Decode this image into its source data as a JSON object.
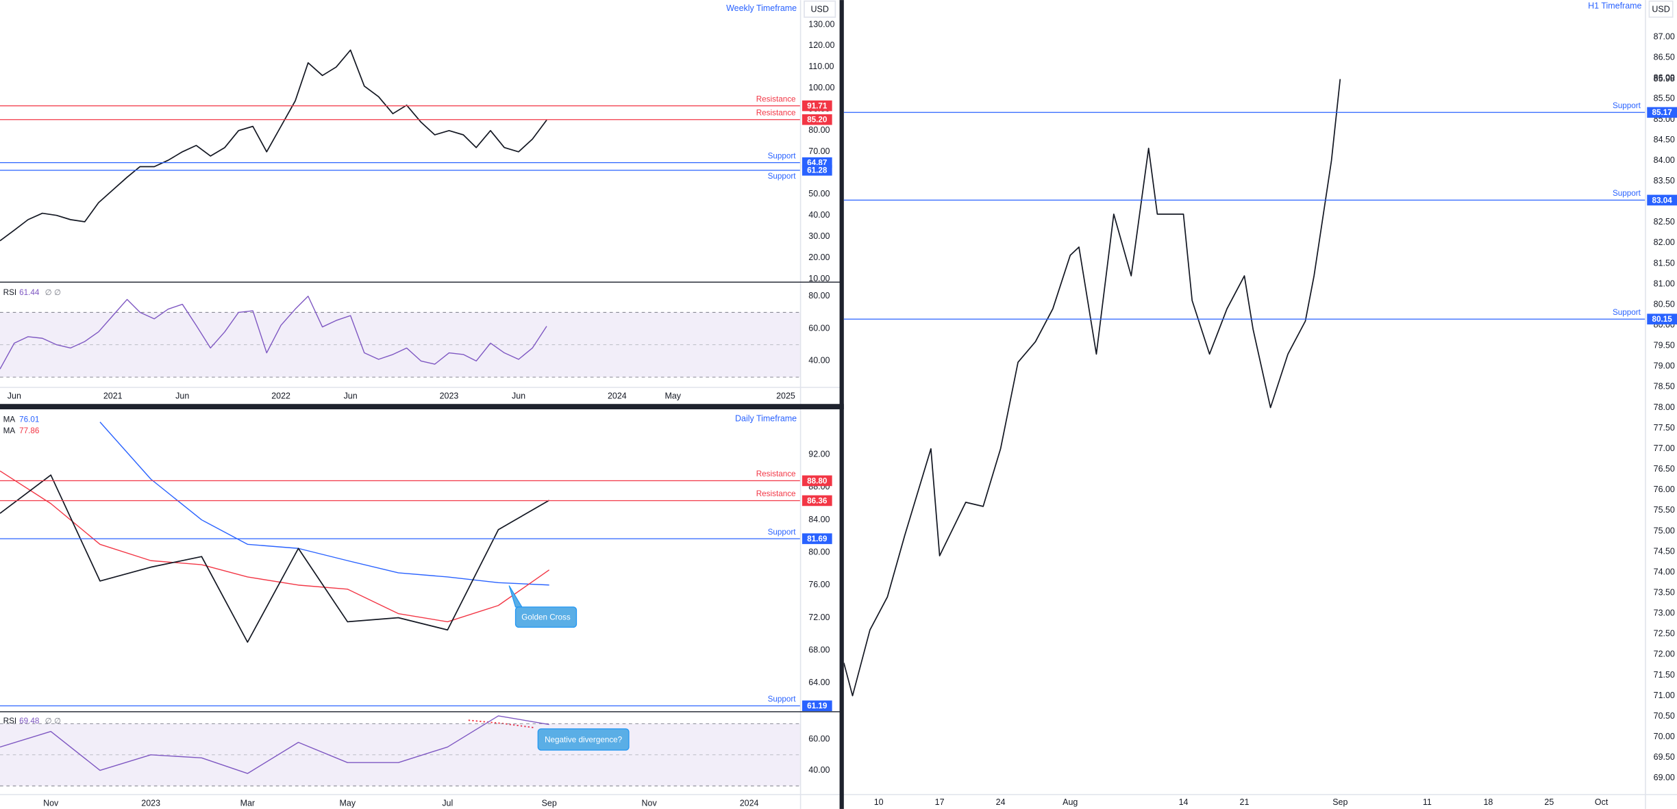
{
  "chart_data": [
    {
      "type": "line",
      "title": "Weekly Timeframe",
      "currency": "USD",
      "color": "#131722",
      "x": [
        "2020-05",
        "2020-06",
        "2020-07",
        "2020-08",
        "2020-09",
        "2020-10",
        "2020-11",
        "2020-12",
        "2021-01",
        "2021-02",
        "2021-03",
        "2021-04",
        "2021-05",
        "2021-06",
        "2021-07",
        "2021-08",
        "2021-09",
        "2021-10",
        "2021-11",
        "2021-12",
        "2022-01",
        "2022-02",
        "2022-03",
        "2022-04",
        "2022-05",
        "2022-06",
        "2022-07",
        "2022-08",
        "2022-09",
        "2022-10",
        "2022-11",
        "2022-12",
        "2023-01",
        "2023-02",
        "2023-03",
        "2023-04",
        "2023-05",
        "2023-06",
        "2023-07",
        "2023-08"
      ],
      "values": [
        28,
        33,
        38,
        41,
        40,
        38,
        37,
        46,
        52,
        58,
        63,
        63,
        66,
        70,
        73,
        68,
        72,
        80,
        82,
        70,
        82,
        94,
        112,
        106,
        110,
        118,
        101,
        96,
        88,
        92,
        84,
        78,
        80,
        78,
        72,
        80,
        72,
        70,
        76,
        85
      ],
      "xlim": [
        "2020-05",
        "2025-02"
      ],
      "xticks": [
        {
          "value": "2020-06",
          "label": "Jun"
        },
        {
          "value": "2021-01",
          "label": "2021"
        },
        {
          "value": "2021-06",
          "label": "Jun"
        },
        {
          "value": "2022-01",
          "label": "2022"
        },
        {
          "value": "2022-06",
          "label": "Jun"
        },
        {
          "value": "2023-01",
          "label": "2023"
        },
        {
          "value": "2023-06",
          "label": "Jun"
        },
        {
          "value": "2024-01",
          "label": "2024"
        },
        {
          "value": "2024-05",
          "label": "May"
        },
        {
          "value": "2025-01",
          "label": "2025"
        }
      ],
      "ylim": [
        9,
        141.6
      ],
      "yticks": [
        {
          "value": 10,
          "label": "10.00"
        },
        {
          "value": 20,
          "label": "20.00"
        },
        {
          "value": 30,
          "label": "30.00"
        },
        {
          "value": 40,
          "label": "40.00"
        },
        {
          "value": 50,
          "label": "50.00"
        },
        {
          "value": 60,
          "label": "60.00"
        },
        {
          "value": 70,
          "label": "70.00"
        },
        {
          "value": 80,
          "label": "80.00"
        },
        {
          "value": 90,
          "label": "90.00"
        },
        {
          "value": 100,
          "label": "100.00"
        },
        {
          "value": 110,
          "label": "110.00"
        },
        {
          "value": 120,
          "label": "120.00"
        },
        {
          "value": 130,
          "label": "130.00"
        }
      ],
      "levels": [
        {
          "name": "Resistance",
          "value": 91.71,
          "color": "#f23645"
        },
        {
          "name": "Resistance",
          "value": 85.2,
          "value_label": "85.20",
          "color": "#f23645"
        },
        {
          "name": "Support",
          "value": 64.87,
          "color": "#2962ff"
        },
        {
          "name": "Support",
          "value": 61.28,
          "color": "#2962ff"
        }
      ],
      "rsi": {
        "name": "RSI",
        "flags": "∅ ∅",
        "color": "#7e57c2",
        "values": [
          35,
          51,
          55,
          54,
          50,
          48,
          52,
          58,
          68,
          78,
          70,
          66,
          72,
          75,
          62,
          48,
          58,
          70,
          71,
          45,
          62,
          72,
          80,
          61,
          65,
          68,
          45,
          41,
          44,
          48,
          40,
          38,
          45,
          44,
          40,
          51,
          45,
          41,
          48,
          61.44
        ],
        "ylim": [
          24,
          88
        ],
        "yticks": [
          {
            "value": 40,
            "label": "40.00"
          },
          {
            "value": 60,
            "label": "60.00"
          },
          {
            "value": 80,
            "label": "80.00"
          }
        ],
        "bands": [
          70,
          50,
          30
        ]
      }
    },
    {
      "type": "line",
      "title": "Daily Timeframe",
      "currency": "USD",
      "color": "#131722",
      "x": [
        "2022-10",
        "2022-11",
        "2022-12",
        "2023-01",
        "2023-02",
        "2023-03",
        "2023-04",
        "2023-05",
        "2023-06",
        "2023-07",
        "2023-08",
        "2023-09"
      ],
      "values": [
        84.8,
        89.5,
        76.5,
        78.2,
        79.5,
        69,
        80.5,
        71.5,
        72,
        70.5,
        82.8,
        86.4
      ],
      "series": [
        {
          "name": "MA",
          "color": "#2962ff",
          "values": [
            null,
            null,
            96,
            89,
            84,
            81,
            80.5,
            79,
            77.5,
            77,
            76.3,
            76.01
          ]
        },
        {
          "name": "MA",
          "color": "#f23645",
          "values": [
            90,
            86,
            81,
            79,
            78.5,
            77,
            76,
            75.5,
            72.5,
            71.5,
            73.5,
            77.86
          ]
        }
      ],
      "xlim": [
        "2022-10",
        "2024-02"
      ],
      "xticks": [
        {
          "value": "2022-11",
          "label": "Nov"
        },
        {
          "value": "2023-01",
          "label": "2023"
        },
        {
          "value": "2023-03",
          "label": "Mar"
        },
        {
          "value": "2023-05",
          "label": "May"
        },
        {
          "value": "2023-07",
          "label": "Jul"
        },
        {
          "value": "2023-09",
          "label": "Sep"
        },
        {
          "value": "2023-11",
          "label": "Nov"
        },
        {
          "value": "2024-01",
          "label": "2024"
        }
      ],
      "ylim": [
        60.6,
        97.3
      ],
      "yticks": [
        {
          "value": 64,
          "label": "64.00"
        },
        {
          "value": 68,
          "label": "68.00"
        },
        {
          "value": 72,
          "label": "72.00"
        },
        {
          "value": 76,
          "label": "76.00"
        },
        {
          "value": 80,
          "label": "80.00"
        },
        {
          "value": 84,
          "label": "84.00"
        },
        {
          "value": 88,
          "label": "88.00"
        },
        {
          "value": 92,
          "label": "92.00"
        }
      ],
      "levels": [
        {
          "name": "Resistance",
          "value": 88.8,
          "value_label": "88.80",
          "color": "#f23645"
        },
        {
          "name": "Resistance",
          "value": 86.36,
          "color": "#f23645"
        },
        {
          "name": "Support",
          "value": 81.69,
          "color": "#2962ff"
        },
        {
          "name": "Support",
          "value": 61.19,
          "color": "#2962ff"
        }
      ],
      "annotations": [
        "Golden Cross",
        "Negative divergence?"
      ],
      "rsi": {
        "name": "RSI",
        "flags": "∅ ∅",
        "color": "#7e57c2",
        "values": [
          55,
          65,
          40,
          50,
          48,
          38,
          58,
          45,
          45,
          55,
          75,
          69.48
        ],
        "ylim": [
          25.5,
          77
        ],
        "yticks": [
          {
            "value": 40,
            "label": "40.00"
          },
          {
            "value": 60,
            "label": "60.00"
          }
        ],
        "bands": [
          70,
          50,
          30
        ]
      }
    },
    {
      "type": "line",
      "title": "H1 Timeframe",
      "currency": "USD",
      "color": "#131722",
      "x": [
        "Jul 6",
        "Jul 7",
        "Jul 9",
        "Jul 11",
        "Jul 13",
        "Jul 16",
        "Jul 17",
        "Jul 20",
        "Jul 22",
        "Jul 24",
        "Jul 26",
        "Jul 28",
        "Jul 30",
        "Aug 1",
        "Aug 2",
        "Aug 4",
        "Aug 6",
        "Aug 8",
        "Aug 10",
        "Aug 11",
        "Aug 14",
        "Aug 15",
        "Aug 17",
        "Aug 19",
        "Aug 21",
        "Aug 22",
        "Aug 24",
        "Aug 26",
        "Aug 28",
        "Aug 29",
        "Aug 31",
        "Sep 1"
      ],
      "values": [
        71.8,
        71.0,
        72.6,
        73.4,
        74.9,
        77.0,
        74.4,
        75.7,
        75.6,
        77.0,
        79.1,
        79.6,
        80.4,
        81.7,
        81.9,
        79.3,
        82.7,
        81.2,
        84.3,
        82.7,
        82.7,
        80.6,
        79.3,
        80.4,
        81.2,
        79.9,
        78.0,
        79.3,
        80.1,
        81.2,
        84.0,
        85.98
      ],
      "xlim": [
        "Jul 6",
        "Oct 6"
      ],
      "xticks": [
        {
          "value": "Jul 10",
          "label": "10"
        },
        {
          "value": "Jul 17",
          "label": "17"
        },
        {
          "value": "Jul 24",
          "label": "24"
        },
        {
          "value": "Aug 1",
          "label": "Aug"
        },
        {
          "value": "Aug 14",
          "label": "14"
        },
        {
          "value": "Aug 21",
          "label": "21"
        },
        {
          "value": "Sep 1",
          "label": "Sep"
        },
        {
          "value": "Sep 11",
          "label": "11"
        },
        {
          "value": "Sep 18",
          "label": "18"
        },
        {
          "value": "Sep 25",
          "label": "25"
        },
        {
          "value": "Oct 1",
          "label": "Oct"
        }
      ],
      "ylim": [
        68.64,
        87.9
      ],
      "yticks": [
        {
          "value": 69,
          "label": "69.00"
        },
        {
          "value": 69.5,
          "label": "69.50"
        },
        {
          "value": 70,
          "label": "70.00"
        },
        {
          "value": 70.5,
          "label": "70.50"
        },
        {
          "value": 71,
          "label": "71.00"
        },
        {
          "value": 71.5,
          "label": "71.50"
        },
        {
          "value": 72,
          "label": "72.00"
        },
        {
          "value": 72.5,
          "label": "72.50"
        },
        {
          "value": 73,
          "label": "73.00"
        },
        {
          "value": 73.5,
          "label": "73.50"
        },
        {
          "value": 74,
          "label": "74.00"
        },
        {
          "value": 74.5,
          "label": "74.50"
        },
        {
          "value": 75,
          "label": "75.00"
        },
        {
          "value": 75.5,
          "label": "75.50"
        },
        {
          "value": 76,
          "label": "76.00"
        },
        {
          "value": 76.5,
          "label": "76.50"
        },
        {
          "value": 77,
          "label": "77.00"
        },
        {
          "value": 77.5,
          "label": "77.50"
        },
        {
          "value": 78,
          "label": "78.00"
        },
        {
          "value": 78.5,
          "label": "78.50"
        },
        {
          "value": 79,
          "label": "79.00"
        },
        {
          "value": 79.5,
          "label": "79.50"
        },
        {
          "value": 80,
          "label": "80.00"
        },
        {
          "value": 80.5,
          "label": "80.50"
        },
        {
          "value": 81,
          "label": "81.00"
        },
        {
          "value": 81.5,
          "label": "81.50"
        },
        {
          "value": 82,
          "label": "82.00"
        },
        {
          "value": 82.5,
          "label": "82.50"
        },
        {
          "value": 83,
          "label": "83.00"
        },
        {
          "value": 83.5,
          "label": "83.50"
        },
        {
          "value": 84,
          "label": "84.00"
        },
        {
          "value": 84.5,
          "label": "84.50"
        },
        {
          "value": 85,
          "label": "85.00"
        },
        {
          "value": 85.5,
          "label": "85.50"
        },
        {
          "value": 86,
          "label": "86.00"
        },
        {
          "value": 86.5,
          "label": "86.50"
        },
        {
          "value": 87,
          "label": "87.00"
        }
      ],
      "levels": [
        {
          "name": "Support",
          "value": 85.17,
          "color": "#2962ff"
        },
        {
          "name": "Support",
          "value": 83.04,
          "color": "#2962ff"
        },
        {
          "name": "Support",
          "value": 80.15,
          "color": "#2962ff"
        }
      ]
    }
  ]
}
